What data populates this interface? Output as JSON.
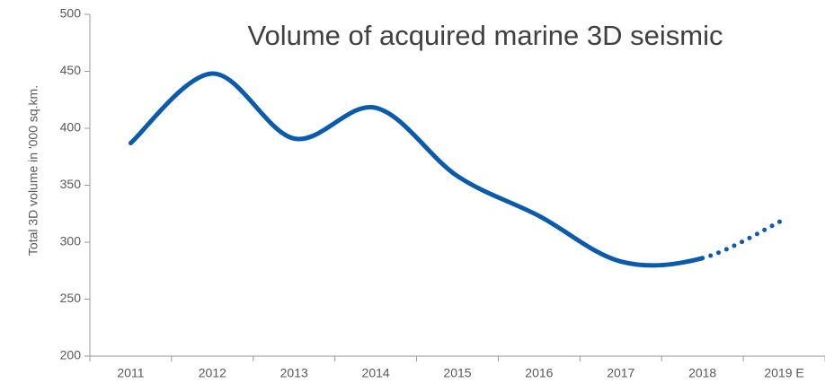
{
  "chart_data": {
    "type": "line",
    "title": "Volume of acquired marine 3D seismic",
    "y_label": "Total 3D volume in '000 sq.km.",
    "categories": [
      "2011",
      "2012",
      "2013",
      "2014",
      "2015",
      "2016",
      "2017",
      "2018",
      "2019 E"
    ],
    "values": [
      387,
      448,
      391,
      418,
      358,
      323,
      283,
      286,
      320
    ],
    "color": "#0a5aad",
    "dotted_from": 7,
    "ylim": [
      200,
      500
    ],
    "yticks": [
      200,
      250,
      300,
      350,
      400,
      450,
      500
    ],
    "grid": false
  }
}
